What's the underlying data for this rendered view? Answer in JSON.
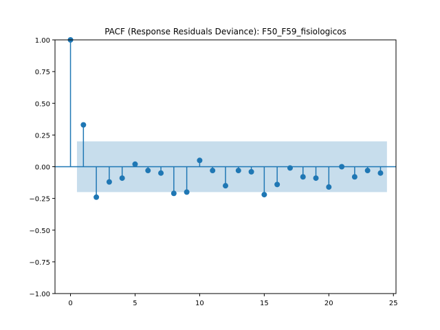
{
  "chart_data": {
    "type": "stem",
    "title": "PACF (Response Residuals Deviance): F50_F59_fisiologicos",
    "xlabel": "",
    "ylabel": "",
    "xlim": [
      -1.2,
      25.2
    ],
    "ylim": [
      -1.0,
      1.0
    ],
    "xticks": [
      0,
      5,
      10,
      15,
      20,
      25
    ],
    "xtick_labels": [
      "0",
      "5",
      "10",
      "15",
      "20",
      "25"
    ],
    "yticks": [
      -1.0,
      -0.75,
      -0.5,
      -0.25,
      0.0,
      0.25,
      0.5,
      0.75,
      1.0
    ],
    "ytick_labels": [
      "−1.00",
      "−0.75",
      "−0.50",
      "−0.25",
      "0.00",
      "0.25",
      "0.50",
      "0.75",
      "1.00"
    ],
    "grid": false,
    "series": [
      {
        "lags": [
          0,
          1,
          2,
          3,
          4,
          5,
          6,
          7,
          8,
          9,
          10,
          11,
          12,
          13,
          14,
          15,
          16,
          17,
          18,
          19,
          20,
          21,
          22,
          23,
          24
        ],
        "values": [
          1.0,
          0.33,
          -0.24,
          -0.12,
          -0.09,
          0.02,
          -0.03,
          -0.05,
          -0.21,
          -0.2,
          0.05,
          -0.03,
          -0.15,
          -0.03,
          -0.04,
          -0.22,
          -0.14,
          -0.01,
          -0.08,
          -0.09,
          -0.16,
          0.0,
          -0.08,
          -0.03,
          -0.05
        ]
      }
    ],
    "confidence_band": {
      "x_start": 0.5,
      "x_end": 24.5,
      "upper": 0.2,
      "lower": -0.2
    },
    "colors": {
      "stem": "#1f77b4",
      "marker": "#1f77b4",
      "zero_line": "#1f77b4",
      "band": "#1f77b4",
      "band_opacity": 0.25
    }
  }
}
